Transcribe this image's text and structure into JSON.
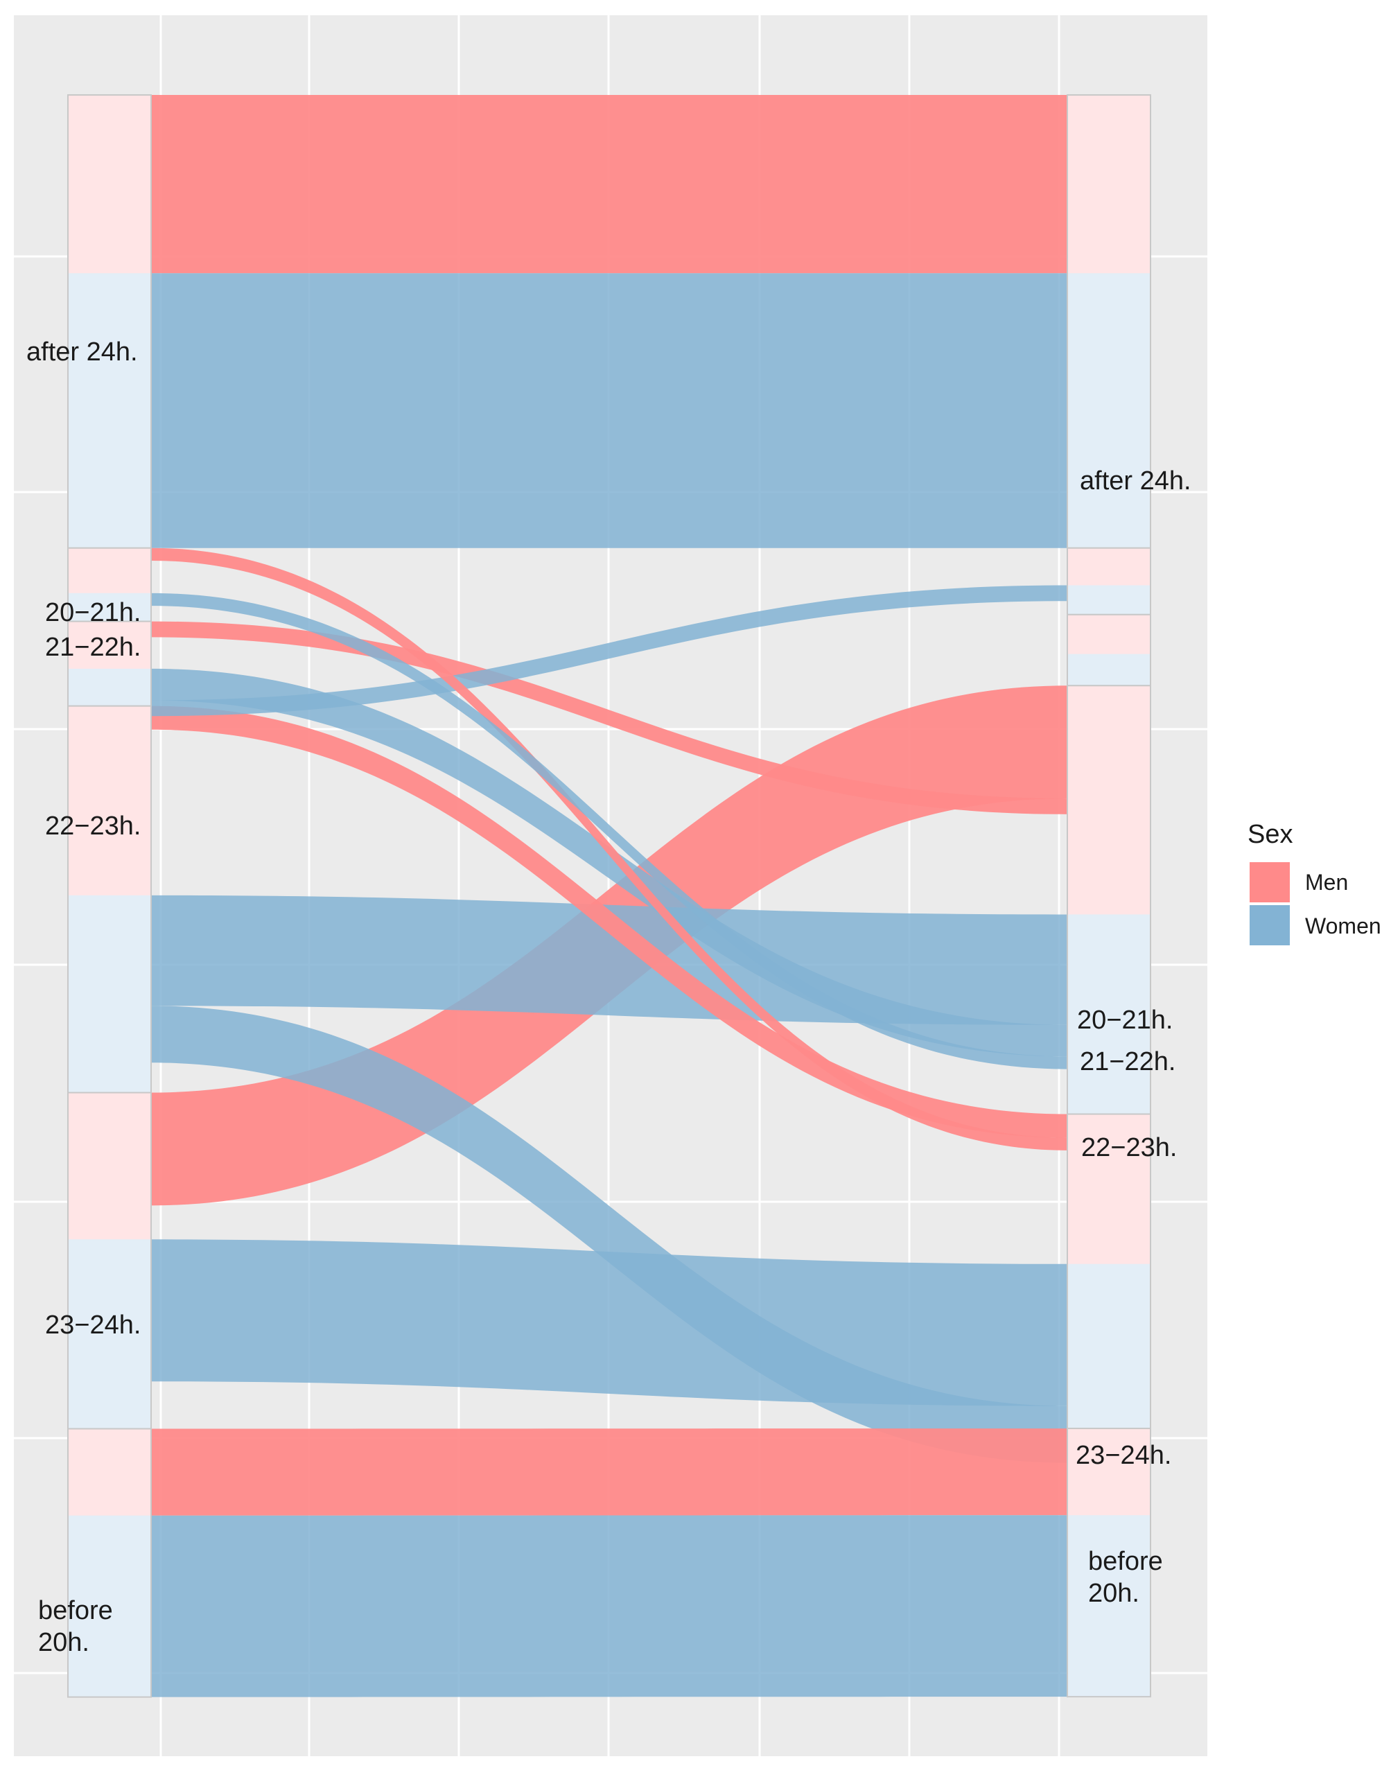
{
  "chart_data": {
    "type": "alluvial",
    "legend": {
      "title": "Sex",
      "position": "right",
      "items": [
        {
          "name": "Men",
          "color": "#F8766D"
        },
        {
          "name": "Women",
          "color": "#619CFF"
        }
      ]
    },
    "colors": {
      "Men": "#FF8A8A",
      "Women": "#83B3D4",
      "panel": "#EBEBEB",
      "grid": "#FFFFFF",
      "strata_men": "#FFE5E6",
      "strata_women": "#E3EEF7"
    },
    "left_axis": {
      "categories": [
        "after 24h.",
        "20−21h.",
        "21−22h.",
        "22−23h.",
        "23−24h.",
        "before\n20h."
      ],
      "strata": [
        {
          "label": "after 24h.",
          "men": 0.113,
          "women": 0.1741
        },
        {
          "label": "20−21h.",
          "men": 0.0286,
          "women": 0.0179
        },
        {
          "label": "21−22h.",
          "men": 0.03,
          "women": 0.0236
        },
        {
          "label": "22−23h.",
          "men": 0.12,
          "women": 0.125
        },
        {
          "label": "23−24h.",
          "men": 0.093,
          "women": 0.12
        },
        {
          "label": "before\n20h.",
          "men": 0.055,
          "women": 0.115
        }
      ]
    },
    "right_axis": {
      "categories": [
        "after 24h.",
        "20−21h.",
        "21−22h.",
        "22−23h.",
        "23−24h.",
        "before\n20h."
      ],
      "strata": [
        {
          "label": "after 24h.",
          "men": 0.113,
          "women": 0.1741
        },
        {
          "label": "20−21h.",
          "men": 0.0236,
          "women": 0.0186
        },
        {
          "label": "21−22h.",
          "men": 0.025,
          "women": 0.02
        },
        {
          "label": "22−23h.",
          "men": 0.145,
          "women": 0.1265
        },
        {
          "label": "23−24h.",
          "men": 0.095,
          "women": 0.1042
        },
        {
          "label": "before\n20h.",
          "men": 0.055,
          "women": 0.115
        }
      ]
    },
    "flows": [
      {
        "sex": "Men",
        "from": "after 24h.",
        "to": "after 24h.",
        "value": 0.113
      },
      {
        "sex": "Women",
        "from": "after 24h.",
        "to": "after 24h.",
        "value": 0.1741
      },
      {
        "sex": "Men",
        "from": "23−24h.",
        "to": "22−23h.",
        "value": 0.0715
      },
      {
        "sex": "Women",
        "from": "23−24h.",
        "to": "23−24h.",
        "value": 0.09
      },
      {
        "sex": "Women",
        "from": "22−23h.",
        "to": "22−23h.",
        "value": 0.07
      },
      {
        "sex": "Men",
        "from": "22−23h.",
        "to": "23−24h.",
        "value": 0.015
      },
      {
        "sex": "Women",
        "from": "22−23h.",
        "to": "23−24h.",
        "value": 0.036
      },
      {
        "sex": "Men",
        "from": "21−22h.",
        "to": "22−23h.",
        "value": 0.01
      },
      {
        "sex": "Women",
        "from": "21−22h.",
        "to": "22−23h.",
        "value": 0.02
      },
      {
        "sex": "Women",
        "from": "21−22h.",
        "to": "20−21h.",
        "value": 0.01
      },
      {
        "sex": "Men",
        "from": "20−21h.",
        "to": "23−24h.",
        "value": 0.008
      },
      {
        "sex": "Women",
        "from": "20−21h.",
        "to": "22−23h.",
        "value": 0.008
      },
      {
        "sex": "Men",
        "from": "before\n20h.",
        "to": "before\n20h.",
        "value": 0.055
      },
      {
        "sex": "Women",
        "from": "before\n20h.",
        "to": "before\n20h.",
        "value": 0.115
      }
    ]
  }
}
